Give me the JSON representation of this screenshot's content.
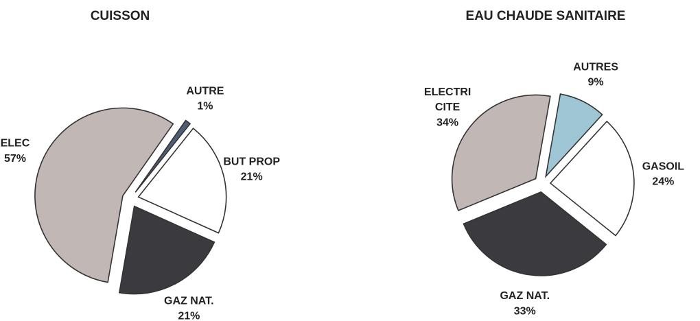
{
  "chart_data": [
    {
      "type": "pie",
      "title": "CUISSON",
      "categories": [
        "AUTRE",
        "BUT PROP",
        "GAZ NAT.",
        "ELEC"
      ],
      "values": [
        1,
        21,
        21,
        57
      ],
      "value_labels": [
        "1%",
        "21%",
        "21%",
        "57%"
      ],
      "colors": [
        "#4d5d73",
        "#ffffff",
        "#3a3a3f",
        "#c1b7b4"
      ]
    },
    {
      "type": "pie",
      "title": "EAU CHAUDE SANITAIRE",
      "categories": [
        "AUTRES",
        "GASOIL",
        "GAZ NAT.",
        "ELECTRI\nCITE"
      ],
      "values": [
        9,
        24,
        33,
        34
      ],
      "value_labels": [
        "9%",
        "24%",
        "33%",
        "34%"
      ],
      "colors": [
        "#9fc6d4",
        "#ffffff",
        "#3a3a3f",
        "#c1b7b4"
      ]
    }
  ]
}
